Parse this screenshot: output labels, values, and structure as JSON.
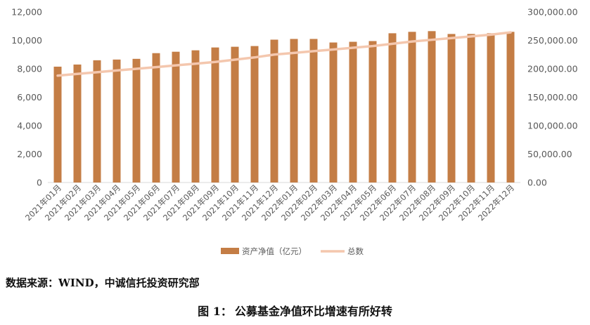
{
  "chart_data": {
    "type": "bar",
    "categories": [
      "2021年01月",
      "2021年02月",
      "2021年03月",
      "2021年04月",
      "2021年05月",
      "2021年06月",
      "2021年07月",
      "2021年08月",
      "2021年09月",
      "2021年10月",
      "2021年11月",
      "2021年12月",
      "2022年01月",
      "2022年02月",
      "2022年03月",
      "2022年04月",
      "2022年05月",
      "2022年06月",
      "2022年07月",
      "2022年08月",
      "2022年09月",
      "2022年10月",
      "2022年11月",
      "2022年12月"
    ],
    "series": [
      {
        "name": "资产净值（亿元）",
        "type": "bar",
        "axis": "left",
        "values": [
          8150,
          8300,
          8600,
          8650,
          8700,
          9100,
          9200,
          9300,
          9500,
          9550,
          9600,
          10050,
          10100,
          10100,
          9850,
          9900,
          9950,
          10500,
          10600,
          10650,
          10450,
          10450,
          10500,
          10600
        ],
        "color": "#C47D45"
      },
      {
        "name": "总数",
        "type": "line",
        "axis": "right",
        "values": [
          188000,
          191000,
          194000,
          197000,
          200000,
          203000,
          206000,
          209000,
          212000,
          216000,
          220000,
          225000,
          228000,
          231000,
          234000,
          237000,
          240000,
          244000,
          248000,
          251000,
          254000,
          257000,
          260000,
          264000
        ],
        "color": "#F4C7AE"
      }
    ],
    "y_left": {
      "ylim": [
        0,
        12000
      ],
      "ticks": [
        "0",
        "2,000",
        "4,000",
        "6,000",
        "8,000",
        "10,000",
        "12,000"
      ]
    },
    "y_right": {
      "ylim": [
        0,
        300000
      ],
      "ticks": [
        "0.00",
        "50,000.00",
        "100,000.00",
        "150,000.00",
        "200,000.00",
        "250,000.00",
        "300,000.00"
      ]
    },
    "grid": false,
    "legend_position": "bottom"
  },
  "source_text": "数据来源：WIND，中诚信托投资研究部",
  "caption_prefix": "图 1：",
  "caption_text": "公募基金净值环比增速有所好转"
}
